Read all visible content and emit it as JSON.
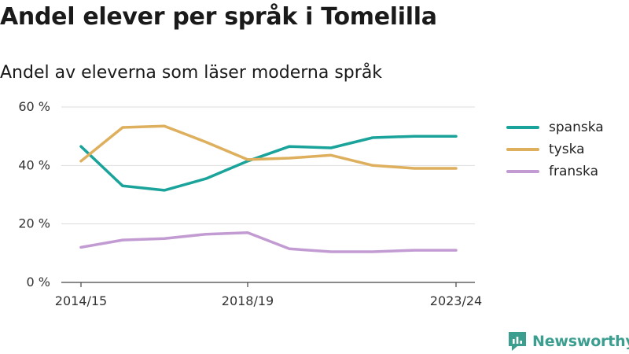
{
  "header": {
    "title": "Andel elever per språk i Tomelilla",
    "subtitle": "Andel av eleverna som läser moderna språk"
  },
  "brand": {
    "label": "Newsworthy",
    "icon": "newsworthy-logo-icon",
    "color": "#3b9e8f"
  },
  "chart_data": {
    "type": "line",
    "title": "Andel elever per språk i Tomelilla",
    "subtitle": "Andel av eleverna som läser moderna språk",
    "x": [
      "2014/15",
      "2015/16",
      "2016/17",
      "2017/18",
      "2018/19",
      "2019/20",
      "2020/21",
      "2021/22",
      "2022/23",
      "2023/24"
    ],
    "x_tick_labels": [
      "2014/15",
      "2018/19",
      "2023/24"
    ],
    "y_ticks": [
      0,
      20,
      40,
      60
    ],
    "y_tick_labels": [
      "0 %",
      "20 %",
      "40 %",
      "60 %"
    ],
    "ylim": [
      0,
      60
    ],
    "grid": true,
    "legend_position": "right",
    "series": [
      {
        "name": "spanska",
        "color": "#1aa39a",
        "values": [
          46.5,
          33.0,
          31.5,
          35.5,
          41.5,
          46.5,
          46.0,
          49.5,
          50.0,
          50.0
        ]
      },
      {
        "name": "tyska",
        "color": "#deaf5d",
        "values": [
          41.5,
          53.0,
          53.5,
          48.0,
          42.0,
          42.5,
          43.5,
          40.0,
          39.0,
          39.0
        ]
      },
      {
        "name": "franska",
        "color": "#c39bd3",
        "values": [
          12.0,
          14.5,
          15.0,
          16.5,
          17.0,
          11.5,
          10.5,
          10.5,
          11.0,
          11.0
        ]
      }
    ]
  }
}
